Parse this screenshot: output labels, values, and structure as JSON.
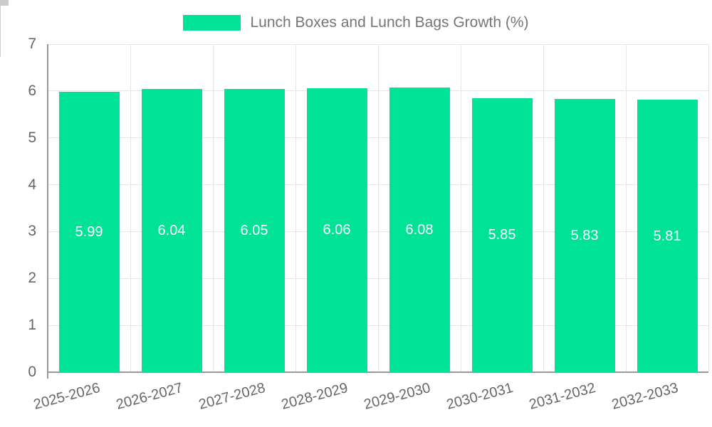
{
  "legend": {
    "label": "Lunch Boxes and Lunch Bags Growth (%)"
  },
  "colors": {
    "bar": "#00E396",
    "value_label": "#ffffff",
    "tick_text": "#666666",
    "legend_text": "#757575",
    "gridline": "#e6e6e6",
    "axis_line": "#9a9a9a"
  },
  "chart_data": {
    "type": "bar",
    "title": "",
    "categories": [
      "2025-2026",
      "2026-2027",
      "2027-2028",
      "2028-2029",
      "2029-2030",
      "2030-2031",
      "2031-2032",
      "2032-2033"
    ],
    "values": [
      5.99,
      6.04,
      6.05,
      6.06,
      6.08,
      5.85,
      5.83,
      5.81
    ],
    "value_labels": [
      "5.99",
      "6.04",
      "6.05",
      "6.06",
      "6.08",
      "5.85",
      "5.83",
      "5.81"
    ],
    "series": [
      {
        "name": "Lunch Boxes and Lunch Bags Growth (%)",
        "values": [
          5.99,
          6.04,
          6.05,
          6.06,
          6.08,
          5.85,
          5.83,
          5.81
        ]
      }
    ],
    "xlabel": "",
    "ylabel": "",
    "ylim": [
      0,
      7
    ],
    "yticks": [
      0,
      1,
      2,
      3,
      4,
      5,
      6,
      7
    ],
    "grid": true,
    "legend_position": "top",
    "bar_color": "#00E396",
    "value_labels_inside_bars": true,
    "x_label_rotation_deg": -15
  }
}
